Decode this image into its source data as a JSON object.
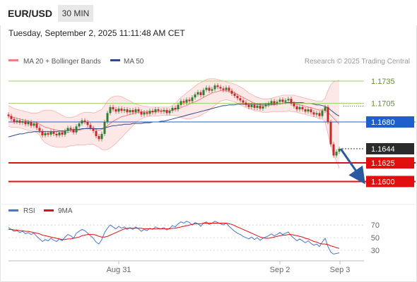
{
  "header": {
    "pair": "EUR/USD",
    "timeframe": "30 MIN"
  },
  "datetime": "Tuesday, September 2, 2025 11:11:48 AM CET",
  "legend": {
    "bb_label": "MA 20 + Bollinger Bands",
    "ma50_label": "MA 50",
    "credit": "Research © 2025 Trading Central"
  },
  "rsi_legend": {
    "rsi_label": "RSI",
    "ma9_label": "9MA"
  },
  "colors": {
    "bb": "#f08080",
    "ma50": "#2d4a8a",
    "support": "#e01010",
    "pivot": "#1f5fcc",
    "resist": "#9ccc65",
    "arrow": "#2a5aa0",
    "up": "#2e7d32",
    "down": "#c62828"
  },
  "chart_data": {
    "type": "candlestick",
    "ylim": [
      1.1572,
      1.1752
    ],
    "levels": [
      {
        "value": 1.1735,
        "label": "1.1735",
        "kind": "resistance"
      },
      {
        "value": 1.1705,
        "label": "1.1705",
        "kind": "resistance"
      },
      {
        "value": 1.168,
        "label": "1.1680",
        "kind": "pivot"
      },
      {
        "value": 1.1644,
        "label": "1.1644",
        "kind": "last"
      },
      {
        "value": 1.1625,
        "label": "1.1625",
        "kind": "support"
      },
      {
        "value": 1.16,
        "label": "1.1600",
        "kind": "support"
      }
    ],
    "x_ticks": [
      "Aug 31",
      "Sep 2",
      "Sep 3"
    ],
    "close": [
      1.1688,
      1.1684,
      1.168,
      1.1682,
      1.1679,
      1.1681,
      1.1677,
      1.168,
      1.1675,
      1.1678,
      1.1672,
      1.1668,
      1.1662,
      1.1665,
      1.1663,
      1.1667,
      1.1664,
      1.1662,
      1.1666,
      1.1663,
      1.1668,
      1.1672,
      1.167,
      1.1666,
      1.1674,
      1.1678,
      1.1682,
      1.168,
      1.1676,
      1.1672,
      1.1668,
      1.1661,
      1.1657,
      1.1664,
      1.168,
      1.1692,
      1.17,
      1.1697,
      1.1694,
      1.1698,
      1.1695,
      1.1697,
      1.1693,
      1.1696,
      1.1693,
      1.1697,
      1.1694,
      1.169,
      1.1693,
      1.1691,
      1.1695,
      1.1693,
      1.1697,
      1.1695,
      1.1694,
      1.1696,
      1.1692,
      1.1695,
      1.1699,
      1.1697,
      1.1703,
      1.1708,
      1.1706,
      1.171,
      1.1708,
      1.1713,
      1.1717,
      1.172,
      1.1716,
      1.1723,
      1.1726,
      1.1722,
      1.1724,
      1.1729,
      1.1727,
      1.1725,
      1.1723,
      1.1726,
      1.1722,
      1.1718,
      1.1715,
      1.1712,
      1.1709,
      1.1706,
      1.1703,
      1.17,
      1.1703,
      1.1699,
      1.1702,
      1.1698,
      1.1701,
      1.1703,
      1.1705,
      1.1708,
      1.1705,
      1.1707,
      1.171,
      1.1707,
      1.1709,
      1.1711,
      1.1705,
      1.1701,
      1.1697,
      1.17,
      1.1697,
      1.1694,
      1.1697,
      1.1693,
      1.169,
      1.1692,
      1.1688,
      1.1695,
      1.17,
      1.168,
      1.165,
      1.1635,
      1.164,
      1.1644
    ],
    "ma20": [
      1.1688,
      1.1687,
      1.1686,
      1.1685,
      1.1684,
      1.1683,
      1.1682,
      1.1681,
      1.168,
      1.168,
      1.1679,
      1.1677,
      1.1675,
      1.1673,
      1.1672,
      1.1671,
      1.167,
      1.1669,
      1.1668,
      1.1667,
      1.1666,
      1.1666,
      1.1667,
      1.1667,
      1.1668,
      1.1669,
      1.167,
      1.1671,
      1.1672,
      1.1672,
      1.1671,
      1.167,
      1.1669,
      1.167,
      1.1672,
      1.1675,
      1.1678,
      1.1681,
      1.1683,
      1.1685,
      1.1687,
      1.1688,
      1.1689,
      1.169,
      1.1691,
      1.1692,
      1.1693,
      1.1693,
      1.1694,
      1.1694,
      1.1694,
      1.1694,
      1.1694,
      1.1694,
      1.1695,
      1.1695,
      1.1695,
      1.1695,
      1.1696,
      1.1697,
      1.1698,
      1.1699,
      1.1701,
      1.1702,
      1.1704,
      1.1706,
      1.1707,
      1.1709,
      1.1711,
      1.1713,
      1.1715,
      1.1717,
      1.1719,
      1.172,
      1.1721,
      1.1722,
      1.1722,
      1.1722,
      1.1721,
      1.172,
      1.1719,
      1.1717,
      1.1715,
      1.1713,
      1.1711,
      1.1709,
      1.1707,
      1.1705,
      1.1704,
      1.1703,
      1.1702,
      1.1702,
      1.1702,
      1.1703,
      1.1703,
      1.1704,
      1.1704,
      1.1705,
      1.1705,
      1.1706,
      1.1705,
      1.1705,
      1.1704,
      1.1703,
      1.1702,
      1.1701,
      1.17,
      1.1699,
      1.1698,
      1.1697,
      1.1696,
      1.1696,
      1.1696,
      1.1693,
      1.1689,
      1.1685,
      1.1681,
      1.1677
    ],
    "bb_upper": [
      1.1702,
      1.17,
      1.1698,
      1.1697,
      1.1696,
      1.1695,
      1.1694,
      1.1693,
      1.1692,
      1.1692,
      1.1692,
      1.1693,
      1.1695,
      1.1696,
      1.1696,
      1.1696,
      1.1695,
      1.1693,
      1.1691,
      1.1689,
      1.1687,
      1.1686,
      1.1686,
      1.1687,
      1.1688,
      1.169,
      1.1692,
      1.1693,
      1.1693,
      1.1693,
      1.1692,
      1.1693,
      1.1695,
      1.1697,
      1.1702,
      1.1708,
      1.1712,
      1.1714,
      1.1715,
      1.1715,
      1.1714,
      1.1712,
      1.171,
      1.1708,
      1.1706,
      1.1704,
      1.1703,
      1.1702,
      1.1701,
      1.1701,
      1.17,
      1.17,
      1.17,
      1.17,
      1.17,
      1.17,
      1.17,
      1.17,
      1.1702,
      1.1705,
      1.1709,
      1.1713,
      1.1716,
      1.1719,
      1.1722,
      1.1725,
      1.1728,
      1.1731,
      1.1733,
      1.1735,
      1.1737,
      1.1738,
      1.1738,
      1.1738,
      1.1737,
      1.1736,
      1.1735,
      1.1734,
      1.1733,
      1.1732,
      1.1731,
      1.1729,
      1.1727,
      1.1725,
      1.1722,
      1.1719,
      1.1717,
      1.1715,
      1.1713,
      1.1712,
      1.1711,
      1.1711,
      1.1711,
      1.1712,
      1.1713,
      1.1714,
      1.1715,
      1.1716,
      1.1716,
      1.1716,
      1.1716,
      1.1716,
      1.1715,
      1.1714,
      1.1713,
      1.1712,
      1.1711,
      1.171,
      1.1709,
      1.1708,
      1.1708,
      1.1708,
      1.1712,
      1.1722,
      1.173,
      1.1734,
      1.1735,
      1.1736
    ],
    "bb_lower": [
      1.1674,
      1.1673,
      1.1673,
      1.1673,
      1.1672,
      1.1671,
      1.167,
      1.1669,
      1.1668,
      1.1667,
      1.1666,
      1.1662,
      1.1656,
      1.1652,
      1.165,
      1.1648,
      1.1647,
      1.1646,
      1.1646,
      1.1646,
      1.1646,
      1.1647,
      1.1648,
      1.1648,
      1.1649,
      1.1649,
      1.1649,
      1.1649,
      1.165,
      1.165,
      1.165,
      1.1648,
      1.1646,
      1.1643,
      1.1642,
      1.1643,
      1.1645,
      1.1648,
      1.1651,
      1.1655,
      1.1659,
      1.1663,
      1.1667,
      1.1671,
      1.1675,
      1.1679,
      1.1682,
      1.1684,
      1.1686,
      1.1687,
      1.1688,
      1.1688,
      1.1688,
      1.1688,
      1.1689,
      1.1689,
      1.1689,
      1.1689,
      1.1689,
      1.1689,
      1.1688,
      1.1686,
      1.1685,
      1.1684,
      1.1684,
      1.1685,
      1.1686,
      1.1687,
      1.1689,
      1.1691,
      1.1693,
      1.1696,
      1.1699,
      1.1702,
      1.1705,
      1.1708,
      1.1709,
      1.171,
      1.1709,
      1.1708,
      1.1707,
      1.1705,
      1.1703,
      1.1701,
      1.1699,
      1.1698,
      1.1697,
      1.1695,
      1.1695,
      1.1694,
      1.1693,
      1.1693,
      1.1693,
      1.1694,
      1.1694,
      1.1694,
      1.1694,
      1.1694,
      1.1694,
      1.1695,
      1.1694,
      1.1694,
      1.1693,
      1.1692,
      1.1691,
      1.169,
      1.1689,
      1.1688,
      1.1687,
      1.1686,
      1.1684,
      1.1684,
      1.168,
      1.1664,
      1.1648,
      1.1636,
      1.1627,
      1.1618
    ],
    "ma50": [
      1.166,
      1.1661,
      1.1662,
      1.1663,
      1.1664,
      1.1664,
      1.1665,
      1.1666,
      1.1666,
      1.1667,
      1.1667,
      1.1667,
      1.1667,
      1.1667,
      1.1667,
      1.1667,
      1.1667,
      1.1667,
      1.1668,
      1.1668,
      1.1668,
      1.1669,
      1.1669,
      1.167,
      1.167,
      1.167,
      1.1671,
      1.1671,
      1.1671,
      1.1671,
      1.1671,
      1.1671,
      1.1671,
      1.1671,
      1.1672,
      1.1673,
      1.1674,
      1.1675,
      1.1675,
      1.1676,
      1.1676,
      1.1677,
      1.1677,
      1.1677,
      1.1678,
      1.1678,
      1.1678,
      1.1678,
      1.1679,
      1.1679,
      1.1679,
      1.168,
      1.168,
      1.168,
      1.1681,
      1.1681,
      1.1682,
      1.1683,
      1.1684,
      1.1685,
      1.1686,
      1.1687,
      1.1688,
      1.1689,
      1.169,
      1.1691,
      1.1692,
      1.1693,
      1.1694,
      1.1695,
      1.1696,
      1.1697,
      1.1698,
      1.1699,
      1.17,
      1.1701,
      1.1702,
      1.1702,
      1.1703,
      1.1703,
      1.1703,
      1.1704,
      1.1704,
      1.1704,
      1.1704,
      1.1704,
      1.1704,
      1.1704,
      1.1704,
      1.1704,
      1.1704,
      1.1704,
      1.1704,
      1.1704,
      1.1704,
      1.1705,
      1.1705,
      1.1705,
      1.1706,
      1.1706,
      1.1706,
      1.1706,
      1.1706,
      1.1706,
      1.1706,
      1.1705,
      1.1705,
      1.1705,
      1.1704,
      1.1703,
      1.1703,
      1.1702,
      1.1701,
      1.1699,
      1.1696,
      1.1693,
      1.169,
      1.1688
    ],
    "forecast": {
      "from": 1.1644,
      "to": 1.16
    },
    "rsi": {
      "ylim": [
        20,
        78
      ],
      "ticks": [
        "70",
        "50",
        "30"
      ],
      "levels": [
        70,
        50,
        30
      ],
      "rsi": [
        66,
        63,
        60,
        61,
        58,
        60,
        56,
        58,
        55,
        57,
        52,
        48,
        44,
        47,
        45,
        49,
        46,
        44,
        48,
        45,
        51,
        55,
        53,
        49,
        57,
        60,
        63,
        61,
        57,
        53,
        49,
        43,
        40,
        47,
        58,
        65,
        70,
        67,
        64,
        68,
        65,
        67,
        63,
        66,
        63,
        67,
        64,
        60,
        63,
        61,
        65,
        63,
        67,
        65,
        64,
        66,
        62,
        65,
        69,
        67,
        72,
        75,
        73,
        76,
        74,
        70,
        74,
        72,
        68,
        73,
        75,
        71,
        73,
        76,
        74,
        72,
        70,
        73,
        68,
        64,
        60,
        57,
        55,
        52,
        50,
        48,
        51,
        47,
        50,
        46,
        49,
        51,
        53,
        56,
        53,
        55,
        58,
        55,
        57,
        59,
        53,
        49,
        45,
        48,
        45,
        42,
        45,
        41,
        38,
        40,
        36,
        43,
        49,
        36,
        27,
        24,
        25,
        26
      ],
      "ma9": [
        63,
        63,
        62,
        62,
        61,
        61,
        60,
        60,
        59,
        58,
        57,
        56,
        54,
        53,
        52,
        51,
        50,
        49,
        48,
        47,
        47,
        48,
        48,
        49,
        50,
        51,
        53,
        54,
        55,
        55,
        55,
        54,
        52,
        51,
        51,
        52,
        54,
        56,
        58,
        60,
        62,
        64,
        65,
        65,
        65,
        65,
        65,
        65,
        64,
        64,
        64,
        64,
        64,
        64,
        64,
        64,
        64,
        64,
        65,
        65,
        66,
        67,
        68,
        69,
        70,
        71,
        72,
        72,
        72,
        73,
        73,
        73,
        73,
        73,
        73,
        73,
        73,
        73,
        72,
        71,
        69,
        67,
        65,
        63,
        61,
        59,
        57,
        55,
        53,
        51,
        50,
        49,
        49,
        50,
        51,
        52,
        53,
        54,
        54,
        55,
        55,
        54,
        53,
        52,
        51,
        49,
        48,
        46,
        44,
        43,
        41,
        40,
        40,
        39,
        37,
        36,
        34,
        33
      ]
    }
  }
}
